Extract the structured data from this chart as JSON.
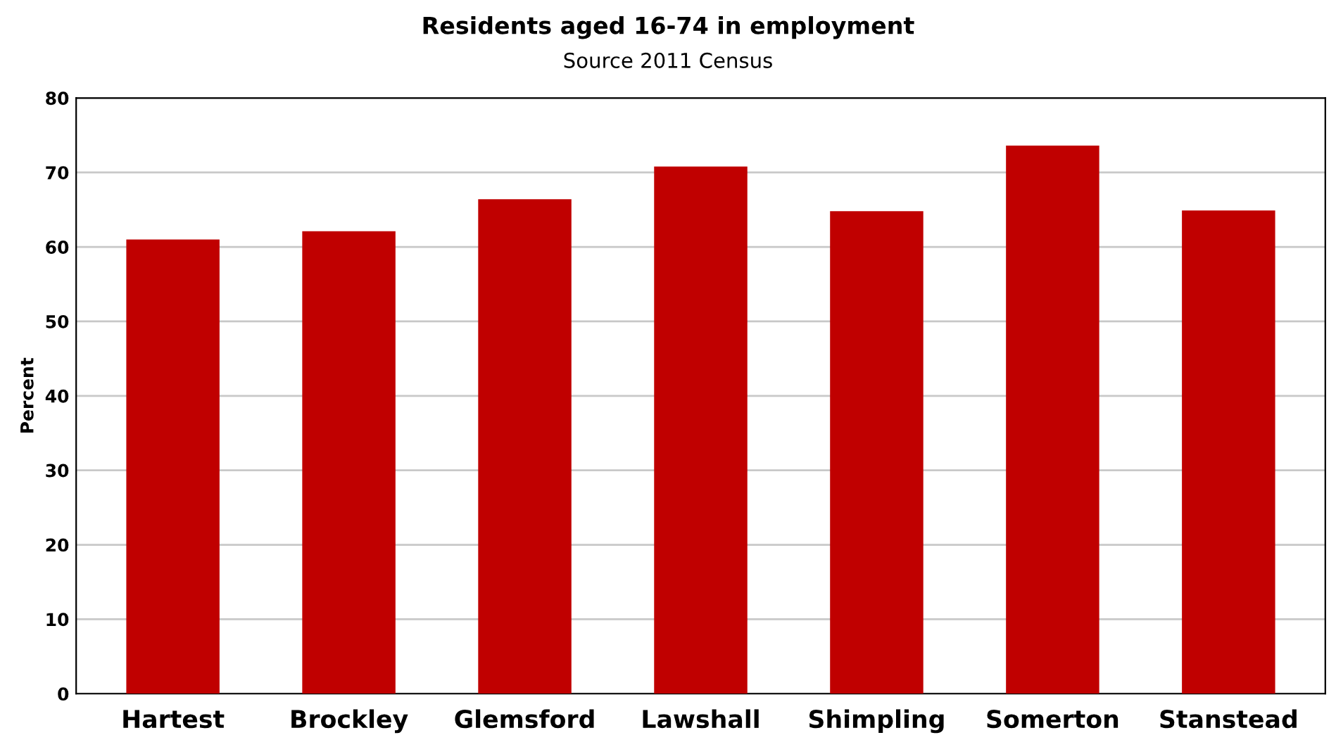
{
  "chart_data": {
    "type": "bar",
    "title": "Residents aged 16-74 in employment",
    "subtitle": "Source 2011 Census",
    "ylabel": "Percent",
    "categories": [
      "Hartest",
      "Brockley",
      "Glemsford",
      "Lawshall",
      "Shimpling",
      "Somerton",
      "Stanstead"
    ],
    "values": [
      61.0,
      62.1,
      66.4,
      70.8,
      64.8,
      73.6,
      64.9
    ],
    "color": "#c00000",
    "ylim": [
      0,
      80
    ],
    "yticks": [
      0,
      10,
      20,
      30,
      40,
      50,
      60,
      70,
      80
    ],
    "grid": "y",
    "legend": false
  }
}
